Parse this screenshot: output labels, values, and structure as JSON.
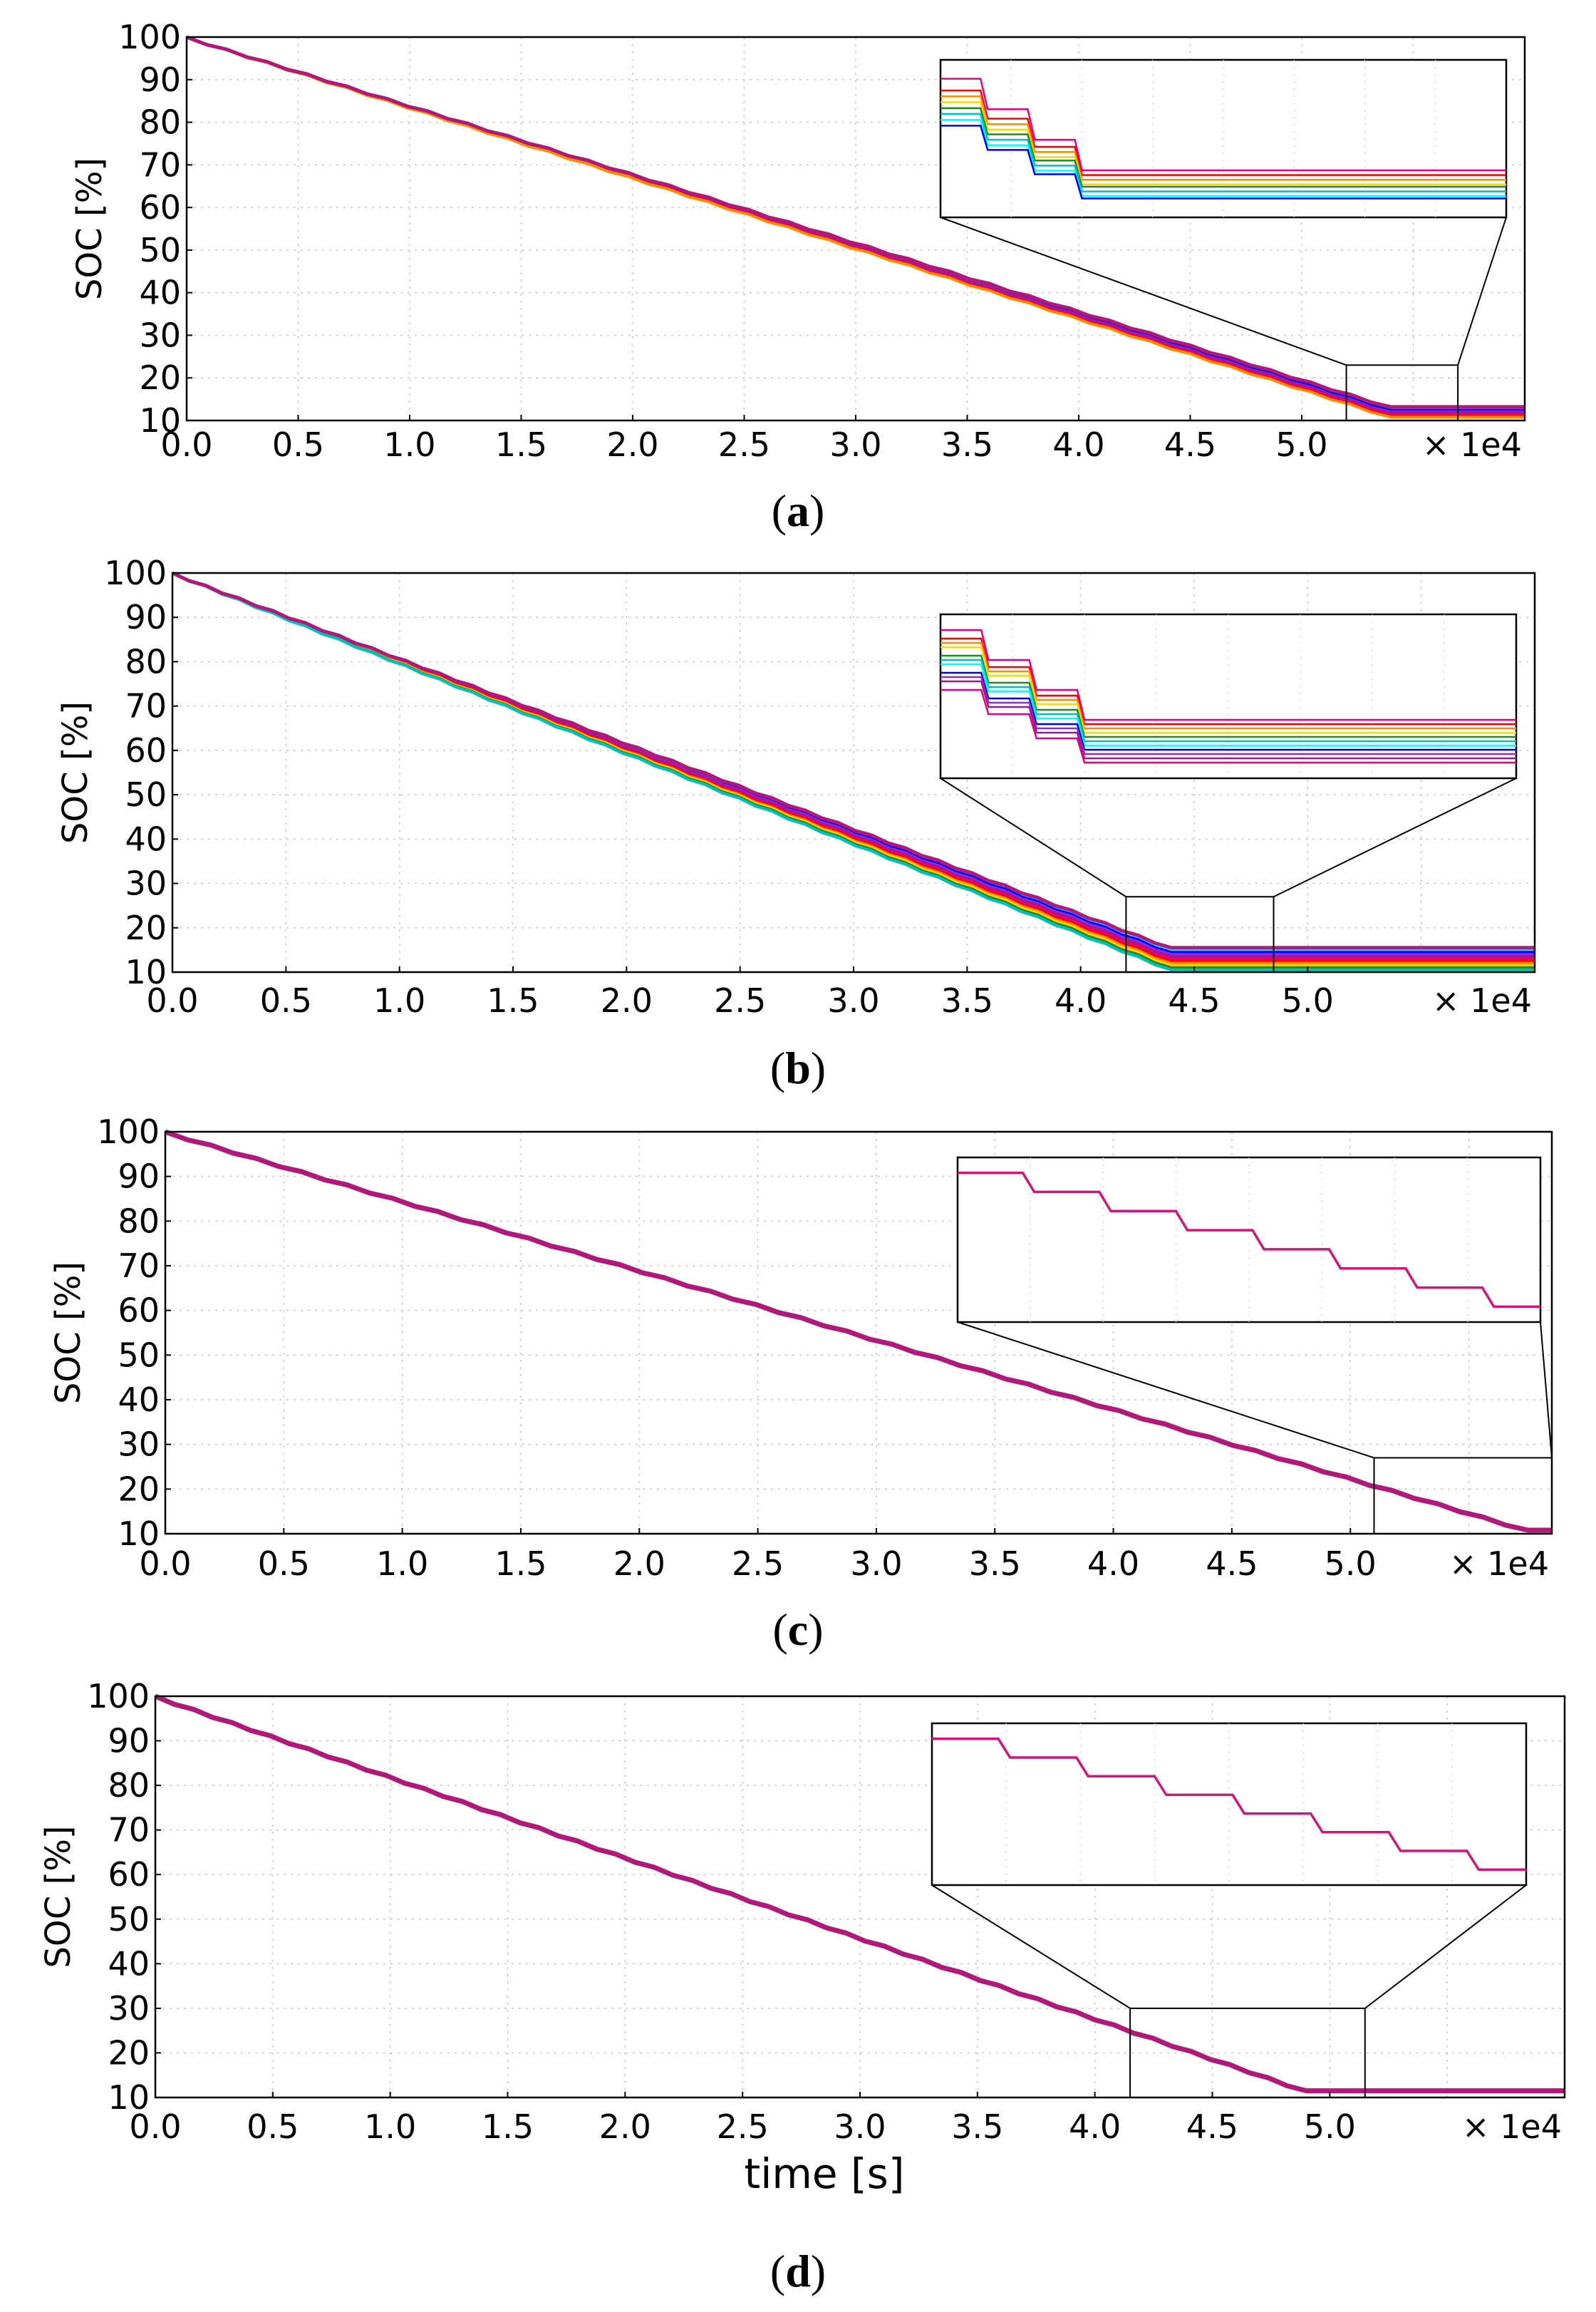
{
  "figure": {
    "series_colors": [
      "#e6007e",
      "#ff0000",
      "#ff8c00",
      "#ffd700",
      "#228b22",
      "#00c0c0",
      "#00ffff",
      "#0000ff",
      "#8a2be2",
      "#a0198c"
    ],
    "main_color": "#b0187a"
  },
  "chart_data": [
    {
      "id": "a",
      "type": "line",
      "caption_label": "a",
      "ylabel": "SOC [%]",
      "xlabel": "",
      "x_scale_label": "× 1e4",
      "xlim": [
        0,
        6.0
      ],
      "ylim": [
        10,
        100
      ],
      "xticks": [
        "0.0",
        "0.5",
        "1.0",
        "1.5",
        "2.0",
        "2.5",
        "3.0",
        "3.5",
        "4.0",
        "4.5",
        "5.0"
      ],
      "yticks": [
        "10",
        "20",
        "30",
        "40",
        "50",
        "60",
        "70",
        "80",
        "90",
        "100"
      ],
      "grid": true,
      "end_time": 5.4,
      "final_soc": [
        13.2,
        12.8,
        12.4,
        12.0,
        11.8,
        11.4,
        11.0,
        10.8
      ],
      "zoom_window": {
        "x0": 5.2,
        "x1": 5.7,
        "y0": 10,
        "y1": 23
      },
      "inset_start": [
        21,
        20,
        19.5,
        19,
        18.5,
        18,
        17.5,
        17
      ],
      "inset_final": [
        13.2,
        12.8,
        12.4,
        12.0,
        11.8,
        11.4,
        11.0,
        10.8
      ]
    },
    {
      "id": "b",
      "type": "line",
      "caption_label": "b",
      "ylabel": "SOC [%]",
      "xlabel": "",
      "x_scale_label": "× 1e4",
      "xlim": [
        0,
        6.0
      ],
      "ylim": [
        10,
        100
      ],
      "xticks": [
        "0.0",
        "0.5",
        "1.0",
        "1.5",
        "2.0",
        "2.5",
        "3.0",
        "3.5",
        "4.0",
        "4.5",
        "5.0"
      ],
      "yticks": [
        "10",
        "20",
        "30",
        "40",
        "50",
        "60",
        "70",
        "80",
        "90",
        "100"
      ],
      "grid": true,
      "end_time": 4.4,
      "final_soc": [
        15.5,
        15.0,
        14.5,
        14.0,
        13.5,
        13.0,
        12.5,
        12.0,
        11.5,
        11.0,
        10.5
      ],
      "zoom_window": {
        "x0": 4.2,
        "x1": 4.85,
        "y0": 10,
        "y1": 27
      },
      "inset_start": [
        26,
        25,
        24.5,
        24,
        23,
        22.5,
        22,
        21,
        20.5,
        20,
        19
      ],
      "inset_final": [
        15.5,
        15.0,
        14.5,
        14.0,
        13.5,
        13.0,
        12.5,
        12.0,
        11.5,
        11.0,
        10.5
      ]
    },
    {
      "id": "c",
      "type": "line",
      "caption_label": "c",
      "ylabel": "SOC [%]",
      "xlabel": "",
      "x_scale_label": "× 1e4",
      "xlim": [
        0,
        5.85
      ],
      "ylim": [
        10,
        100
      ],
      "xticks": [
        "0.0",
        "0.5",
        "1.0",
        "1.5",
        "2.0",
        "2.5",
        "3.0",
        "3.5",
        "4.0",
        "4.5",
        "5.0"
      ],
      "yticks": [
        "10",
        "20",
        "30",
        "40",
        "50",
        "60",
        "70",
        "80",
        "90",
        "100"
      ],
      "grid": true,
      "end_time": 5.75,
      "final_soc": [
        10.8
      ],
      "zoom_window": {
        "x0": 5.1,
        "x1": 5.85,
        "y0": 10,
        "y1": 27
      },
      "inset_start": [
        27
      ],
      "inset_final": [
        10.8
      ]
    },
    {
      "id": "d",
      "type": "line",
      "caption_label": "d",
      "ylabel": "SOC [%]",
      "xlabel": "time [s]",
      "x_scale_label": "× 1e4",
      "xlim": [
        0,
        6.0
      ],
      "ylim": [
        10,
        100
      ],
      "xticks": [
        "0.0",
        "0.5",
        "1.0",
        "1.5",
        "2.0",
        "2.5",
        "3.0",
        "3.5",
        "4.0",
        "4.5",
        "5.0"
      ],
      "yticks": [
        "10",
        "20",
        "30",
        "40",
        "50",
        "60",
        "70",
        "80",
        "90",
        "100"
      ],
      "grid": true,
      "end_time": 4.9,
      "final_soc": [
        11.5
      ],
      "zoom_window": {
        "x0": 4.15,
        "x1": 5.15,
        "y0": 10,
        "y1": 30
      },
      "inset_start": [
        27
      ],
      "inset_final": [
        11.5
      ]
    }
  ]
}
